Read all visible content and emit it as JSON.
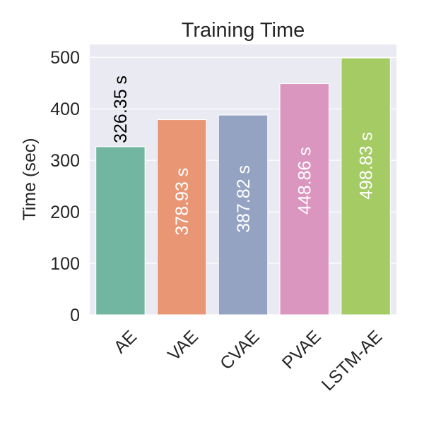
{
  "chart_data": {
    "type": "bar",
    "title": "Training Time",
    "xlabel": "",
    "ylabel": "Time (sec)",
    "categories": [
      "AE",
      "VAE",
      "CVAE",
      "PVAE",
      "LSTM-AE"
    ],
    "values": [
      326.35,
      378.93,
      387.82,
      448.86,
      498.83
    ],
    "data_labels": [
      "326.35 s",
      "378.93 s",
      "387.82 s",
      "448.86 s",
      "498.83 s"
    ],
    "colors": [
      "#72b6a1",
      "#e99675",
      "#95a3c3",
      "#db96c0",
      "#a4cb64"
    ],
    "label_colors": [
      "#000000",
      "#ffffff",
      "#ffffff",
      "#ffffff",
      "#ffffff"
    ],
    "ylim": [
      0,
      525
    ],
    "yticks": [
      0,
      100,
      200,
      300,
      400,
      500
    ],
    "grid": true,
    "legend": "none"
  }
}
